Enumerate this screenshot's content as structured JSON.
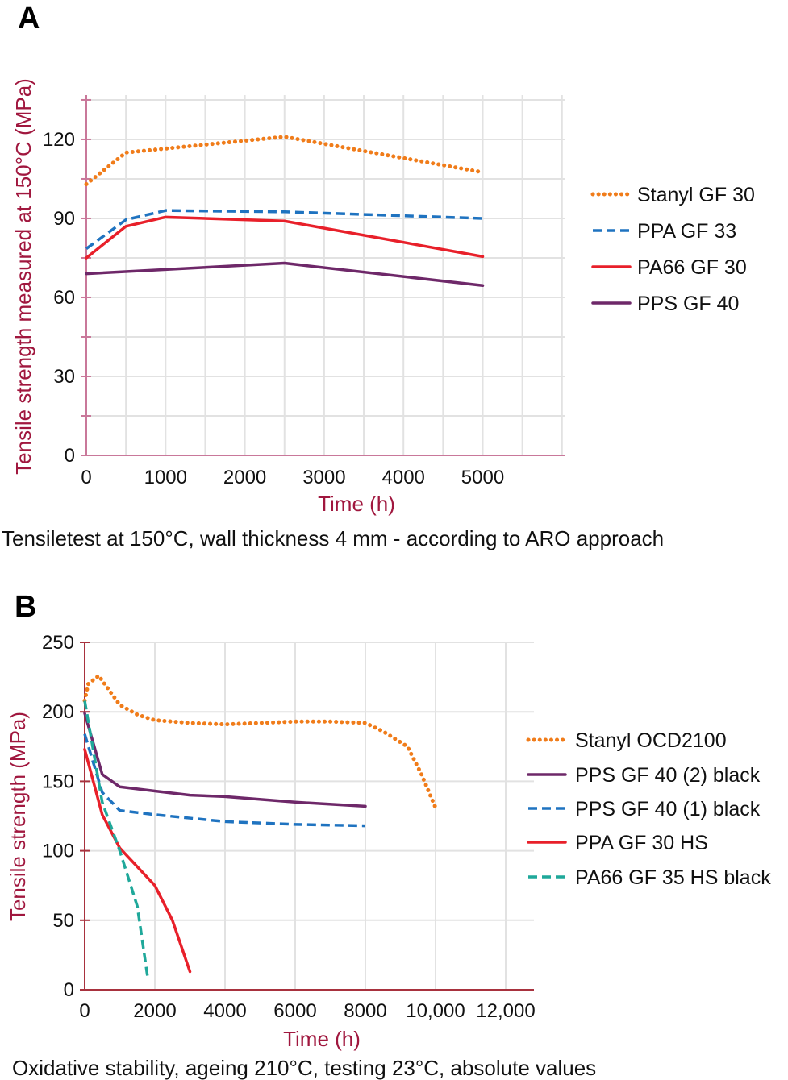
{
  "colors": {
    "orange": "#f07c1a",
    "blue": "#1f73c0",
    "red": "#e8202a",
    "purple": "#6e2869",
    "teal": "#1fa89a",
    "axis_label": "#a0173e",
    "axis_a": "#c9789a",
    "axis_b": "#a8323e",
    "grid": "#e2e2e2"
  },
  "chart_data": [
    {
      "panel_label": "A",
      "type": "line",
      "caption": "Tensiletest at 150°C, wall thickness 4 mm - according to ARO approach",
      "xlabel": "Time (h)",
      "ylabel": "Tensile strength measured at 150°C (MPa)",
      "xlim": [
        0,
        6000
      ],
      "ylim": [
        0,
        135
      ],
      "xticks": [
        0,
        1000,
        2000,
        3000,
        4000,
        5000
      ],
      "xtick_labels": [
        "0",
        "1000",
        "2000",
        "3000",
        "4000",
        "5000"
      ],
      "yticks": [
        0,
        30,
        60,
        90,
        120
      ],
      "ytick_labels": [
        "0",
        "30",
        "60",
        "90",
        "120"
      ],
      "grid": true,
      "legend": "right",
      "series": [
        {
          "name": "Stanyl GF 30",
          "style": "dotted",
          "color": "#f07c1a",
          "x": [
            0,
            500,
            1000,
            2500,
            5000
          ],
          "y": [
            103,
            115,
            116.5,
            121,
            107.5
          ]
        },
        {
          "name": "PPA GF 33",
          "style": "dashed",
          "color": "#1f73c0",
          "x": [
            0,
            500,
            1000,
            2500,
            5000
          ],
          "y": [
            78.5,
            89.5,
            93,
            92.5,
            90
          ]
        },
        {
          "name": "PA66 GF 30",
          "style": "solid",
          "color": "#e8202a",
          "x": [
            0,
            500,
            1000,
            2500,
            5000
          ],
          "y": [
            75,
            87,
            90.5,
            89,
            75.5
          ]
        },
        {
          "name": "PPS GF 40",
          "style": "solid",
          "color": "#6e2869",
          "x": [
            0,
            2500,
            5000
          ],
          "y": [
            69,
            73,
            64.5
          ]
        }
      ]
    },
    {
      "panel_label": "B",
      "type": "line",
      "caption": "Oxidative stability, ageing 210°C, testing 23°C, absolute values",
      "xlabel": "Time (h)",
      "ylabel": "Tensile strength (MPa)",
      "xlim": [
        0,
        12800
      ],
      "ylim": [
        0,
        250
      ],
      "xticks": [
        0,
        2000,
        4000,
        6000,
        8000,
        10000,
        12000
      ],
      "xtick_labels": [
        "0",
        "2000",
        "4000",
        "6000",
        "8000",
        "10,000",
        "12,000"
      ],
      "yticks": [
        0,
        50,
        100,
        150,
        200,
        250
      ],
      "ytick_labels": [
        "0",
        "50",
        "100",
        "150",
        "200",
        "250"
      ],
      "grid": true,
      "legend": "right",
      "series": [
        {
          "name": "Stanyl OCD2100",
          "style": "dotted",
          "color": "#f07c1a",
          "x": [
            0,
            100,
            400,
            1000,
            1500,
            2000,
            3000,
            4000,
            5000,
            6000,
            7000,
            8000,
            8500,
            9200,
            9600,
            10000
          ],
          "y": [
            208,
            220,
            226,
            205,
            198,
            194,
            192,
            191,
            192,
            193,
            193,
            192,
            186,
            175,
            155,
            131
          ]
        },
        {
          "name": "PPS GF 40 (2) black",
          "style": "solid",
          "color": "#6e2869",
          "x": [
            0,
            500,
            1000,
            2000,
            3000,
            4000,
            6000,
            8000
          ],
          "y": [
            199,
            155,
            146,
            143,
            140,
            139,
            135,
            132
          ]
        },
        {
          "name": "PPS GF 40 (1) black",
          "style": "dashed",
          "color": "#1f73c0",
          "x": [
            0,
            500,
            1000,
            2000,
            4000,
            6000,
            8000
          ],
          "y": [
            184,
            142,
            129,
            126,
            121,
            119,
            118
          ]
        },
        {
          "name": "PPA GF 30 HS",
          "style": "solid",
          "color": "#e8202a",
          "x": [
            0,
            500,
            1000,
            2000,
            2500,
            3000
          ],
          "y": [
            173,
            126,
            102,
            75,
            50,
            13
          ]
        },
        {
          "name": "PA66 GF 35 HS black",
          "style": "dashed",
          "color": "#1fa89a",
          "x": [
            0,
            500,
            1000,
            1500,
            1800
          ],
          "y": [
            208,
            135,
            100,
            60,
            8
          ]
        }
      ]
    }
  ]
}
